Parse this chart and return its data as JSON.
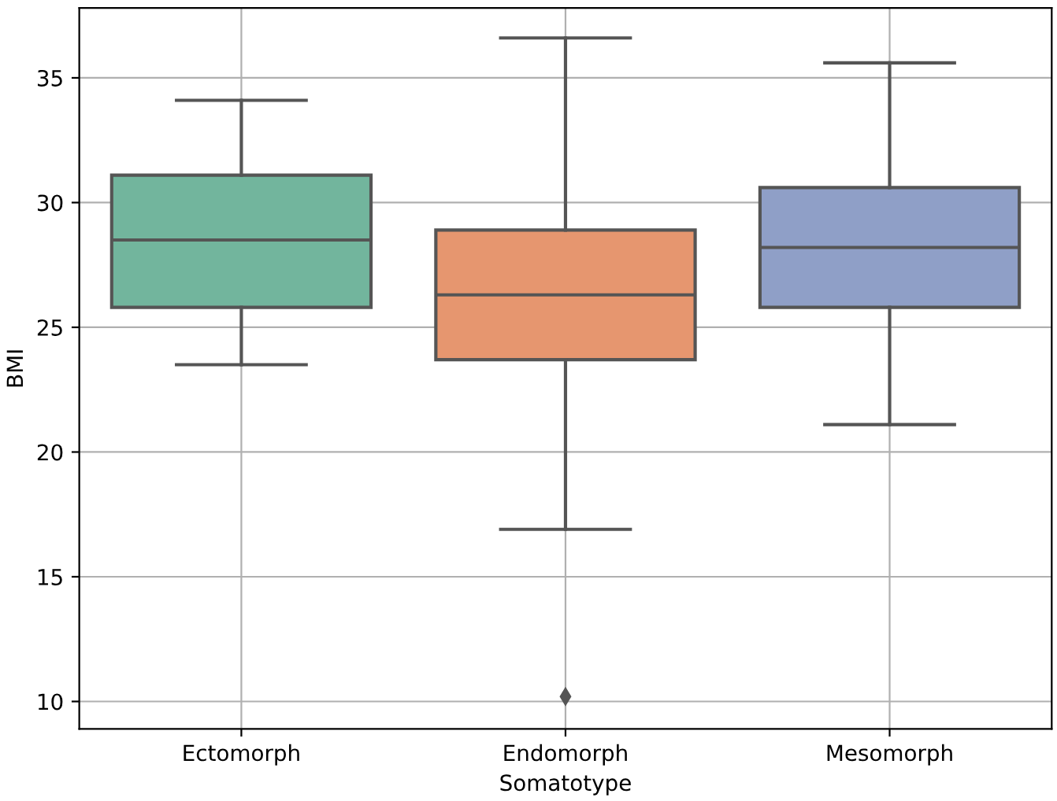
{
  "chart_data": {
    "type": "box",
    "xlabel": "Somatotype",
    "ylabel": "BMI",
    "categories": [
      "Ectomorph",
      "Endomorph",
      "Mesomorph"
    ],
    "boxes": [
      {
        "low": 23.5,
        "q1": 25.8,
        "median": 28.5,
        "q3": 31.1,
        "high": 34.1
      },
      {
        "low": 16.9,
        "q1": 23.7,
        "median": 26.3,
        "q3": 28.9,
        "high": 36.6,
        "outliers": [
          10.2
        ]
      },
      {
        "low": 21.1,
        "q1": 25.8,
        "median": 28.2,
        "q3": 30.6,
        "high": 35.6
      }
    ],
    "colors": [
      "#72b59d",
      "#e6966f",
      "#8f9fc7"
    ],
    "ylim": [
      8.9,
      37.8
    ],
    "yticks": [
      10,
      15,
      20,
      25,
      30,
      35
    ],
    "grid": true
  }
}
